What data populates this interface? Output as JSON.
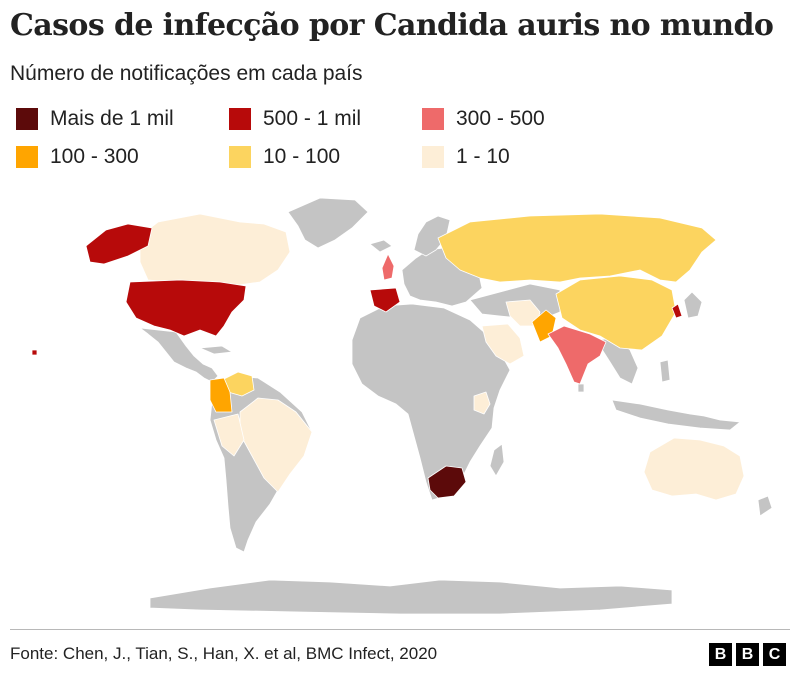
{
  "title": "Casos de infecção por Candida auris no mundo",
  "subtitle": "Número de notificações em cada país",
  "legend": [
    {
      "label": "Mais de 1 mil",
      "color": "#5c0a0a"
    },
    {
      "label": "500 - 1 mil",
      "color": "#b70a0a"
    },
    {
      "label": "300 - 500",
      "color": "#ee6a6a"
    },
    {
      "label": "100 - 300",
      "color": "#ffa500"
    },
    {
      "label": "10 - 100",
      "color": "#fcd45f"
    },
    {
      "label": "1 - 10",
      "color": "#fdeed7"
    }
  ],
  "no_data_color": "#c4c4c4",
  "countries": [
    {
      "id": "south-africa",
      "category": "Mais de 1 mil"
    },
    {
      "id": "united-states",
      "category": "500 - 1 mil"
    },
    {
      "id": "alaska",
      "category": "500 - 1 mil"
    },
    {
      "id": "hawaii",
      "category": "500 - 1 mil"
    },
    {
      "id": "spain",
      "category": "500 - 1 mil"
    },
    {
      "id": "south-korea",
      "category": "500 - 1 mil"
    },
    {
      "id": "india",
      "category": "300 - 500"
    },
    {
      "id": "united-kingdom",
      "category": "300 - 500"
    },
    {
      "id": "pakistan",
      "category": "100 - 300"
    },
    {
      "id": "colombia",
      "category": "100 - 300"
    },
    {
      "id": "russia",
      "category": "10 - 100"
    },
    {
      "id": "china",
      "category": "10 - 100"
    },
    {
      "id": "venezuela",
      "category": "10 - 100"
    },
    {
      "id": "canada",
      "category": "1 - 10"
    },
    {
      "id": "brazil",
      "category": "1 - 10"
    },
    {
      "id": "australia",
      "category": "1 - 10"
    },
    {
      "id": "kenya",
      "category": "1 - 10"
    },
    {
      "id": "saudi-arabia",
      "category": "1 - 10"
    },
    {
      "id": "iran",
      "category": "1 - 10"
    },
    {
      "id": "peru",
      "category": "1 - 10"
    }
  ],
  "source": "Fonte: Chen, J., Tian, S., Han, X. et al, BMC Infect, 2020",
  "logo": [
    "B",
    "B",
    "C"
  ]
}
